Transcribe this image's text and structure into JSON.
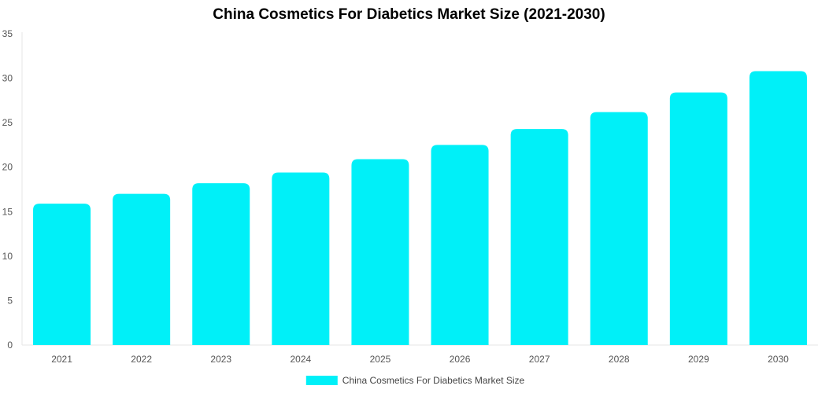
{
  "chart_data": {
    "type": "bar",
    "title": "China Cosmetics For Diabetics Market Size (2021-2030)",
    "categories": [
      "2021",
      "2022",
      "2023",
      "2024",
      "2025",
      "2026",
      "2027",
      "2028",
      "2029",
      "2030"
    ],
    "series": [
      {
        "name": "China Cosmetics For Diabetics Market Size",
        "values": [
          15.9,
          17.0,
          18.2,
          19.4,
          20.9,
          22.5,
          24.3,
          26.2,
          28.4,
          30.8
        ],
        "color": "#00f0f8"
      }
    ],
    "ylim": [
      0,
      35
    ],
    "yticks": [
      0,
      5,
      10,
      15,
      20,
      25,
      30,
      35
    ],
    "grid": false,
    "legend": "bottom-center"
  }
}
